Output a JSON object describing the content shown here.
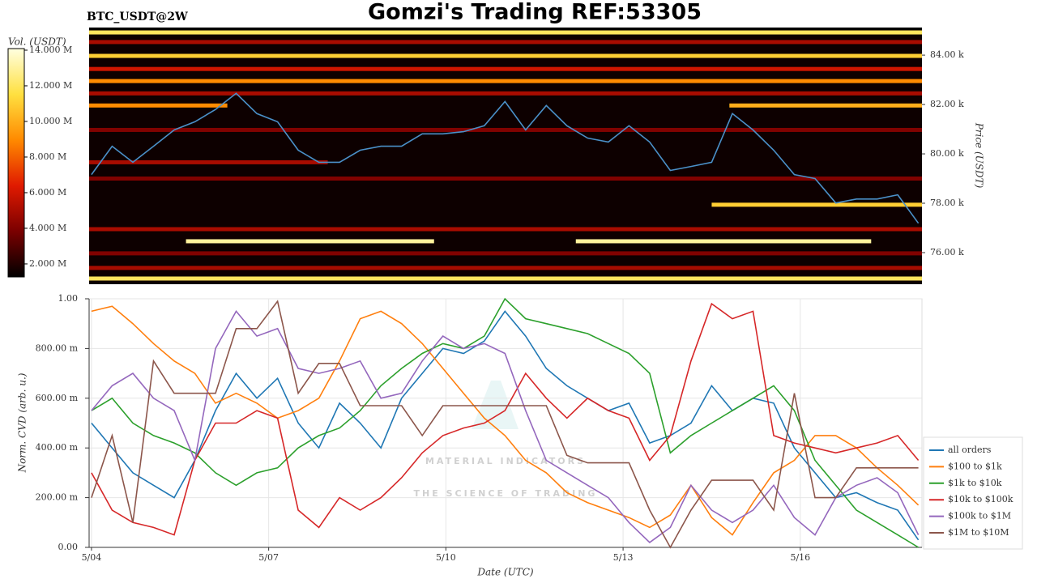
{
  "title": "Gomzi's Trading REF:53305",
  "chart_data": [
    {
      "type": "heatmap",
      "title": "BTC_USDT@2W",
      "colorbar_label": "Vol. (USDT)",
      "zlim": [
        1270000,
        14090000
      ],
      "zticks": [
        {
          "value": 2000000,
          "label": "2.000 M"
        },
        {
          "value": 4000000,
          "label": "4.000 M"
        },
        {
          "value": 6000000,
          "label": "6.000 M"
        },
        {
          "value": 8000000,
          "label": "8.000 M"
        },
        {
          "value": 10000000,
          "label": "10.000 M"
        },
        {
          "value": 12000000,
          "label": "12.000 M"
        },
        {
          "value": 14000000,
          "label": "14.000 M"
        }
      ],
      "colormap": [
        "#000000",
        "#7a0000",
        "#e01a00",
        "#ff8a00",
        "#ffe040",
        "#ffffe0"
      ],
      "y2_label": "Price (USDT)",
      "y2lim": [
        74720,
        85020
      ],
      "y2ticks": [
        {
          "value": 76000,
          "label": "76.00 k"
        },
        {
          "value": 78000,
          "label": "78.00 k"
        },
        {
          "value": 80000,
          "label": "80.00 k"
        },
        {
          "value": 82000,
          "label": "82.00 k"
        },
        {
          "value": 84000,
          "label": "84.00 k"
        }
      ],
      "xlim": [
        3.96,
        18.06
      ],
      "levels": {
        "price": [
          84920,
          84530,
          83970,
          83440,
          82950,
          82450,
          81960,
          81960,
          80970,
          79660,
          79000,
          77940,
          76950,
          76460,
          76460,
          75970,
          75380,
          74950
        ],
        "start": [
          3.96,
          3.96,
          3.96,
          3.96,
          3.96,
          3.96,
          3.96,
          14.8,
          3.96,
          3.96,
          3.96,
          14.5,
          3.96,
          5.6,
          12.2,
          3.96,
          3.96,
          3.96
        ],
        "end": [
          18.06,
          18.06,
          18.06,
          18.06,
          18.06,
          18.06,
          6.3,
          18.06,
          18.06,
          8.0,
          18.06,
          18.06,
          18.06,
          9.8,
          17.2,
          18.06,
          18.06,
          18.06
        ],
        "volume": [
          12000000,
          5000000,
          11000000,
          6000000,
          9000000,
          5000000,
          9000000,
          10000000,
          4000000,
          5000000,
          4000000,
          11000000,
          5000000,
          13000000,
          13000000,
          4000000,
          5000000,
          12000000
        ]
      },
      "price_line": {
        "color": "#4a90c8",
        "axis": "y2",
        "x": [
          4,
          4.35,
          4.7,
          5.05,
          5.4,
          5.75,
          6.1,
          6.45,
          6.8,
          7.15,
          7.5,
          7.85,
          8.2,
          8.55,
          8.9,
          9.25,
          9.6,
          9.95,
          10.3,
          10.65,
          11,
          11.35,
          11.7,
          12.05,
          12.4,
          12.75,
          13.1,
          13.45,
          13.8,
          14.15,
          14.5,
          14.85,
          15.2,
          15.55,
          15.9,
          16.25,
          16.6,
          16.95,
          17.3,
          17.65,
          18
        ],
        "values": [
          79160,
          80310,
          79660,
          80310,
          80970,
          81300,
          81800,
          82450,
          81630,
          81300,
          80150,
          79660,
          79660,
          80150,
          80310,
          80310,
          80810,
          80810,
          80900,
          81140,
          82120,
          80970,
          81960,
          81140,
          80640,
          80480,
          81140,
          80480,
          79330,
          79490,
          79660,
          81630,
          80970,
          80150,
          79160,
          79000,
          78010,
          78170,
          78170,
          78340,
          77190
        ]
      }
    },
    {
      "type": "line",
      "ylabel": "Norm. CVD (arb. u.)",
      "xlabel": "Date (UTC)",
      "watermark": [
        "MATERIAL INDICATORS",
        "THE SCIENCE OF TRADING"
      ],
      "x": [
        4,
        4.35,
        4.7,
        5.05,
        5.4,
        5.75,
        6.1,
        6.45,
        6.8,
        7.15,
        7.5,
        7.85,
        8.2,
        8.55,
        8.9,
        9.25,
        9.6,
        9.95,
        10.3,
        10.65,
        11,
        11.35,
        11.7,
        12.05,
        12.4,
        12.75,
        13.1,
        13.45,
        13.8,
        14.15,
        14.5,
        14.85,
        15.2,
        15.55,
        15.9,
        16.25,
        16.6,
        16.95,
        17.3,
        17.65,
        18
      ],
      "xlim": [
        3.96,
        18.06
      ],
      "xticks": [
        {
          "value": 4,
          "label": "5/04"
        },
        {
          "value": 7,
          "label": "5/07"
        },
        {
          "value": 10,
          "label": "5/10"
        },
        {
          "value": 13,
          "label": "5/13"
        },
        {
          "value": 16,
          "label": "5/16"
        }
      ],
      "ylim": [
        0,
        1
      ],
      "yticks": [
        {
          "value": 0,
          "label": "0.00"
        },
        {
          "value": 0.2,
          "label": "200.00 m"
        },
        {
          "value": 0.4,
          "label": "400.00 m"
        },
        {
          "value": 0.6,
          "label": "600.00 m"
        },
        {
          "value": 0.8,
          "label": "800.00 m"
        },
        {
          "value": 1,
          "label": "1.00"
        }
      ],
      "grid": true,
      "legend": "right",
      "series": [
        {
          "name": "all orders",
          "color": "#1f77b4",
          "values": [
            0.5,
            0.4,
            0.3,
            0.25,
            0.2,
            0.35,
            0.55,
            0.7,
            0.6,
            0.68,
            0.5,
            0.4,
            0.58,
            0.5,
            0.4,
            0.6,
            0.7,
            0.8,
            0.78,
            0.83,
            0.95,
            0.85,
            0.72,
            0.65,
            0.6,
            0.55,
            0.58,
            0.42,
            0.45,
            0.5,
            0.65,
            0.55,
            0.6,
            0.58,
            0.4,
            0.3,
            0.2,
            0.22,
            0.18,
            0.15,
            0.03
          ]
        },
        {
          "name": "$100 to $1k",
          "color": "#ff7f0e",
          "values": [
            0.95,
            0.97,
            0.9,
            0.82,
            0.75,
            0.7,
            0.58,
            0.62,
            0.58,
            0.52,
            0.55,
            0.6,
            0.75,
            0.92,
            0.95,
            0.9,
            0.82,
            0.72,
            0.62,
            0.52,
            0.45,
            0.35,
            0.3,
            0.22,
            0.18,
            0.15,
            0.12,
            0.08,
            0.13,
            0.25,
            0.12,
            0.05,
            0.18,
            0.3,
            0.35,
            0.45,
            0.45,
            0.4,
            0.32,
            0.25,
            0.17
          ]
        },
        {
          "name": "$1k to $10k",
          "color": "#2ca02c",
          "values": [
            0.55,
            0.6,
            0.5,
            0.45,
            0.42,
            0.38,
            0.3,
            0.25,
            0.3,
            0.32,
            0.4,
            0.45,
            0.48,
            0.55,
            0.65,
            0.72,
            0.78,
            0.82,
            0.8,
            0.85,
            1.0,
            0.92,
            0.9,
            0.88,
            0.86,
            0.82,
            0.78,
            0.7,
            0.38,
            0.45,
            0.5,
            0.55,
            0.6,
            0.65,
            0.55,
            0.35,
            0.25,
            0.15,
            0.1,
            0.05,
            0.0
          ]
        },
        {
          "name": "$10k to $100k",
          "color": "#d62728",
          "values": [
            0.3,
            0.15,
            0.1,
            0.08,
            0.05,
            0.35,
            0.5,
            0.5,
            0.55,
            0.52,
            0.15,
            0.08,
            0.2,
            0.15,
            0.2,
            0.28,
            0.38,
            0.45,
            0.48,
            0.5,
            0.55,
            0.7,
            0.6,
            0.52,
            0.6,
            0.55,
            0.52,
            0.35,
            0.45,
            0.75,
            0.98,
            0.92,
            0.95,
            0.45,
            0.42,
            0.4,
            0.38,
            0.4,
            0.42,
            0.45,
            0.35
          ]
        },
        {
          "name": "$100k to $1M",
          "color": "#9467bd",
          "values": [
            0.55,
            0.65,
            0.7,
            0.6,
            0.55,
            0.35,
            0.8,
            0.95,
            0.85,
            0.88,
            0.72,
            0.7,
            0.72,
            0.75,
            0.6,
            0.62,
            0.75,
            0.85,
            0.8,
            0.82,
            0.78,
            0.55,
            0.35,
            0.3,
            0.25,
            0.2,
            0.1,
            0.02,
            0.08,
            0.25,
            0.15,
            0.1,
            0.15,
            0.25,
            0.12,
            0.05,
            0.2,
            0.25,
            0.28,
            0.22,
            0.05
          ]
        },
        {
          "name": "$1M to $10M",
          "color": "#8c564b",
          "values": [
            0.2,
            0.45,
            0.1,
            0.75,
            0.62,
            0.62,
            0.62,
            0.88,
            0.88,
            0.99,
            0.62,
            0.74,
            0.74,
            0.57,
            0.57,
            0.57,
            0.45,
            0.57,
            0.57,
            0.57,
            0.57,
            0.57,
            0.57,
            0.37,
            0.34,
            0.34,
            0.34,
            0.15,
            0.0,
            0.15,
            0.27,
            0.27,
            0.27,
            0.15,
            0.62,
            0.2,
            0.2,
            0.32,
            0.32,
            0.32,
            0.32
          ]
        }
      ]
    }
  ]
}
